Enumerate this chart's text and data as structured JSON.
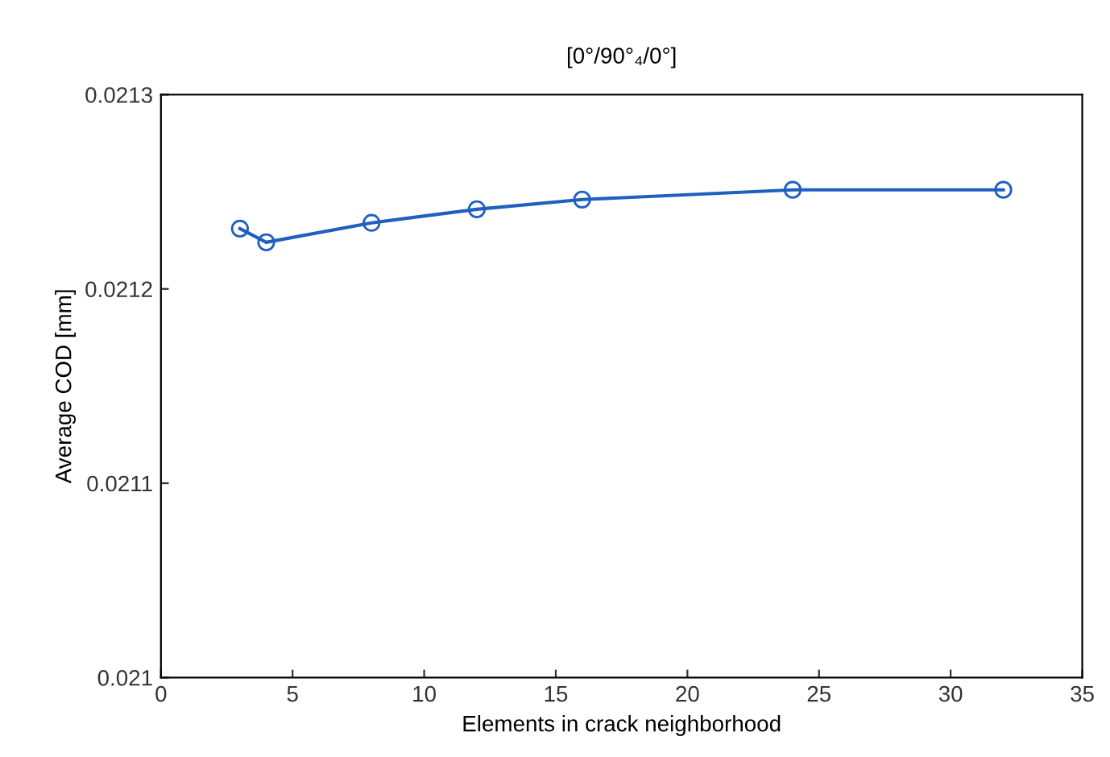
{
  "chart_data": {
    "type": "line",
    "title": "[0°/90°₄/0°]",
    "xlabel": "Elements in crack neighborhood",
    "ylabel": "Average COD [mm]",
    "x": [
      3,
      4,
      8,
      12,
      16,
      24,
      32
    ],
    "series": [
      {
        "color": "#1f5fbf",
        "values": [
          0.021231,
          0.021224,
          0.021234,
          0.021241,
          0.021246,
          0.021251,
          0.021251
        ]
      }
    ],
    "xlim": [
      0,
      35
    ],
    "xticks": [
      0,
      5,
      10,
      15,
      20,
      25,
      30,
      35
    ],
    "ylim": [
      0.021,
      0.0213
    ],
    "yticks": [
      0.021,
      0.0211,
      0.0212,
      0.0213
    ],
    "grid": false,
    "marker": "circle",
    "line_style": "solid"
  }
}
